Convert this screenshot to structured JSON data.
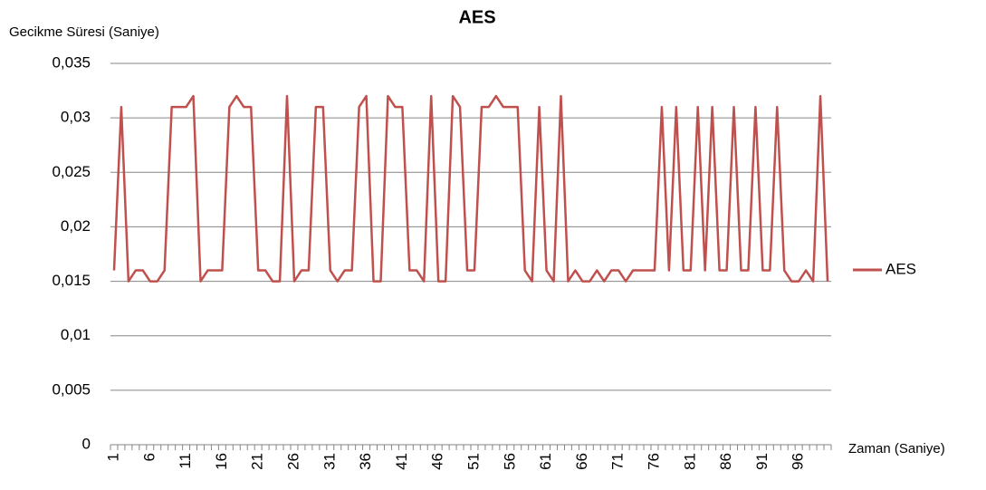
{
  "chart_data": {
    "type": "line",
    "title": "AES",
    "y_label": "Gecikme Süresi (Saniye)",
    "x_label": "Zaman (Saniye)",
    "categories": [
      "1",
      null,
      null,
      null,
      null,
      "6",
      null,
      null,
      null,
      null,
      "11",
      null,
      null,
      null,
      null,
      "16",
      null,
      null,
      null,
      null,
      "21",
      null,
      null,
      null,
      null,
      "26",
      null,
      null,
      null,
      null,
      "31",
      null,
      null,
      null,
      null,
      "36",
      null,
      null,
      null,
      null,
      "41",
      null,
      null,
      null,
      null,
      "46",
      null,
      null,
      null,
      null,
      "51",
      null,
      null,
      null,
      null,
      "56",
      null,
      null,
      null,
      null,
      "61",
      null,
      null,
      null,
      null,
      "66",
      null,
      null,
      null,
      null,
      "71",
      null,
      null,
      null,
      null,
      "76",
      null,
      null,
      null,
      null,
      "81",
      null,
      null,
      null,
      null,
      "86",
      null,
      null,
      null,
      null,
      "91",
      null,
      null,
      null,
      null,
      "96",
      null,
      null,
      null,
      null
    ],
    "series": [
      {
        "name": "AES",
        "color": "#c0504d",
        "values": [
          0.016,
          0.031,
          0.015,
          0.016,
          0.016,
          0.015,
          0.015,
          0.016,
          0.031,
          0.031,
          0.031,
          0.032,
          0.015,
          0.016,
          0.016,
          0.016,
          0.031,
          0.032,
          0.031,
          0.031,
          0.016,
          0.016,
          0.015,
          0.015,
          0.032,
          0.015,
          0.016,
          0.016,
          0.031,
          0.031,
          0.016,
          0.015,
          0.016,
          0.016,
          0.031,
          0.032,
          0.015,
          0.015,
          0.032,
          0.031,
          0.031,
          0.016,
          0.016,
          0.015,
          0.032,
          0.015,
          0.015,
          0.032,
          0.031,
          0.016,
          0.016,
          0.031,
          0.031,
          0.032,
          0.031,
          0.031,
          0.031,
          0.016,
          0.015,
          0.031,
          0.016,
          0.015,
          0.032,
          0.015,
          0.016,
          0.015,
          0.015,
          0.016,
          0.015,
          0.016,
          0.016,
          0.015,
          0.016,
          0.016,
          0.016,
          0.016,
          0.031,
          0.016,
          0.031,
          0.016,
          0.016,
          0.031,
          0.016,
          0.031,
          0.016,
          0.016,
          0.031,
          0.016,
          0.016,
          0.031,
          0.016,
          0.016,
          0.031,
          0.016,
          0.015,
          0.015,
          0.016,
          0.015,
          0.032,
          0.015
        ]
      }
    ],
    "ylim": [
      0,
      0.035
    ],
    "yticks": [
      0,
      {
        "value": 0.005,
        "label": "0,005"
      },
      {
        "value": 0.01,
        "label": "0,01"
      },
      {
        "value": 0.015,
        "label": "0,015"
      },
      {
        "value": 0.02,
        "label": "0,02"
      },
      {
        "value": 0.025,
        "label": "0,025"
      },
      {
        "value": 0.03,
        "label": "0,03"
      },
      {
        "value": 0.035,
        "label": "0,035"
      }
    ],
    "grid": true,
    "legend": "right"
  }
}
